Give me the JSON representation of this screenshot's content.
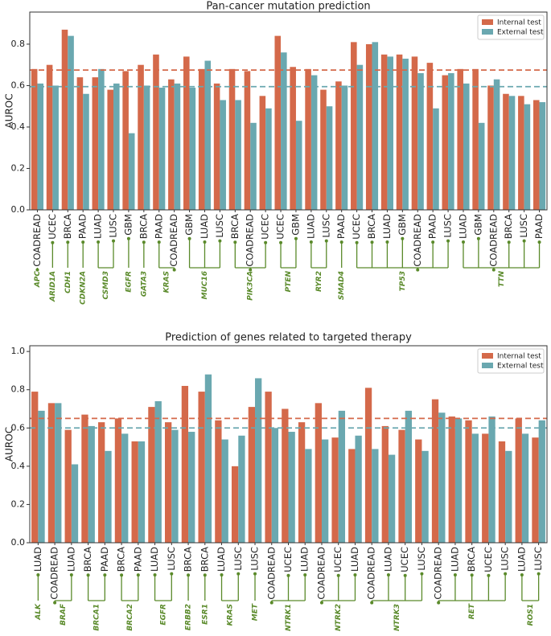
{
  "chart_data": [
    {
      "type": "bar",
      "title": "Pan-cancer mutation prediction",
      "ylabel": "AUROC",
      "categories": [
        "COADREAD",
        "UCEC",
        "BRCA",
        "PAAD",
        "LUAD",
        "LUSC",
        "GBM",
        "BRCA",
        "PAAD",
        "COADREAD",
        "GBM",
        "LUAD",
        "LUSC",
        "BRCA",
        "COADREAD",
        "UCEC",
        "UCEC",
        "GBM",
        "LUAD",
        "LUSC",
        "PAAD",
        "UCEC",
        "BRCA",
        "LUAD",
        "GBM",
        "COADREAD",
        "PAAD",
        "LUSC",
        "LUAD",
        "GBM",
        "COADREAD",
        "BRCA",
        "LUSC",
        "PAAD"
      ],
      "groups": [
        {
          "label": "APC",
          "count": 1
        },
        {
          "label": "ARID1A",
          "count": 1
        },
        {
          "label": "CDH1",
          "count": 1
        },
        {
          "label": "CDKN2A",
          "count": 1
        },
        {
          "label": "CSMD3",
          "count": 2
        },
        {
          "label": "EGFR",
          "count": 1
        },
        {
          "label": "GATA3",
          "count": 1
        },
        {
          "label": "KRAS",
          "count": 2
        },
        {
          "label": "MUC16",
          "count": 3
        },
        {
          "label": "PIK3CA",
          "count": 3
        },
        {
          "label": "PTEN",
          "count": 2
        },
        {
          "label": "RYR2",
          "count": 2
        },
        {
          "label": "SMAD4",
          "count": 1
        },
        {
          "label": "TP53",
          "count": 7
        },
        {
          "label": "TTN",
          "count": 6
        }
      ],
      "series": [
        {
          "name": "Internal test",
          "color": "#d4694a",
          "reference": 0.675,
          "values": [
            0.68,
            0.7,
            0.87,
            0.64,
            0.64,
            0.58,
            0.67,
            0.7,
            0.75,
            0.63,
            0.74,
            0.68,
            0.61,
            0.68,
            0.67,
            0.55,
            0.84,
            0.69,
            0.68,
            0.58,
            0.62,
            0.81,
            0.8,
            0.75,
            0.75,
            0.74,
            0.71,
            0.65,
            0.68,
            0.68,
            0.6,
            0.56,
            0.55,
            0.53
          ]
        },
        {
          "name": "External test",
          "color": "#6aa8b0",
          "reference": 0.595,
          "values": [
            0.61,
            0.6,
            0.84,
            0.56,
            0.68,
            0.61,
            0.37,
            0.6,
            0.59,
            0.61,
            0.59,
            0.72,
            0.53,
            0.53,
            0.42,
            0.49,
            0.76,
            0.43,
            0.65,
            0.5,
            0.6,
            0.7,
            0.81,
            0.74,
            0.73,
            0.66,
            0.49,
            0.66,
            0.61,
            0.42,
            0.63,
            0.55,
            0.51,
            0.52
          ]
        }
      ],
      "ylim": [
        0,
        0.955
      ],
      "yticks": [
        {
          "value": 0,
          "label": "0.0"
        },
        0.2,
        0.4,
        0.6,
        0.8
      ],
      "legend": "upper right"
    },
    {
      "type": "bar",
      "title": "Prediction of genes related to targeted therapy",
      "ylabel": "AUROC",
      "categories": [
        "LUAD",
        "COADREAD",
        "LUAD",
        "BRCA",
        "PAAD",
        "BRCA",
        "PAAD",
        "LUAD",
        "LUSC",
        "BRCA",
        "BRCA",
        "LUAD",
        "LUSC",
        "LUSC",
        "COADREAD",
        "UCEC",
        "LUAD",
        "COADREAD",
        "UCEC",
        "LUAD",
        "COADREAD",
        "LUAD",
        "UCEC",
        "LUSC",
        "COADREAD",
        "LUAD",
        "BRCA",
        "UCEC",
        "LUSC",
        "LUAD",
        "LUSC"
      ],
      "groups": [
        {
          "label": "ALK",
          "count": 1
        },
        {
          "label": "BRAF",
          "count": 2
        },
        {
          "label": "BRCA1",
          "count": 2
        },
        {
          "label": "BRCA2",
          "count": 2
        },
        {
          "label": "EGFR",
          "count": 2
        },
        {
          "label": "ERBB2",
          "count": 1
        },
        {
          "label": "ESR1",
          "count": 1
        },
        {
          "label": "KRAS",
          "count": 2
        },
        {
          "label": "MET",
          "count": 1
        },
        {
          "label": "NTRK1",
          "count": 3
        },
        {
          "label": "NTRK2",
          "count": 3
        },
        {
          "label": "NTRK3",
          "count": 4
        },
        {
          "label": "RET",
          "count": 5
        },
        {
          "label": "ROS1",
          "count": 2
        }
      ],
      "series": [
        {
          "name": "Internal test",
          "color": "#d4694a",
          "reference": 0.65,
          "values": [
            0.79,
            0.73,
            0.59,
            0.67,
            0.63,
            0.65,
            0.53,
            0.71,
            0.63,
            0.82,
            0.79,
            0.64,
            0.4,
            0.71,
            0.79,
            0.7,
            0.63,
            0.73,
            0.55,
            0.49,
            0.81,
            0.61,
            0.59,
            0.54,
            0.75,
            0.66,
            0.64,
            0.57,
            0.53,
            0.65,
            0.55
          ]
        },
        {
          "name": "External test",
          "color": "#6aa8b0",
          "reference": 0.6,
          "values": [
            0.69,
            0.73,
            0.41,
            0.61,
            0.48,
            0.57,
            0.53,
            0.74,
            0.59,
            0.58,
            0.88,
            0.54,
            0.56,
            0.86,
            0.6,
            0.58,
            0.49,
            0.54,
            0.69,
            0.56,
            0.49,
            0.46,
            0.69,
            0.48,
            0.68,
            0.65,
            0.57,
            0.66,
            0.48,
            0.57,
            0.64
          ]
        }
      ],
      "ylim": [
        0,
        1.03
      ],
      "yticks": [
        {
          "value": 0,
          "label": "0.0"
        },
        0.2,
        0.4,
        0.6,
        0.8,
        {
          "value": 1,
          "label": "1.0"
        }
      ],
      "legend": "upper right"
    }
  ]
}
